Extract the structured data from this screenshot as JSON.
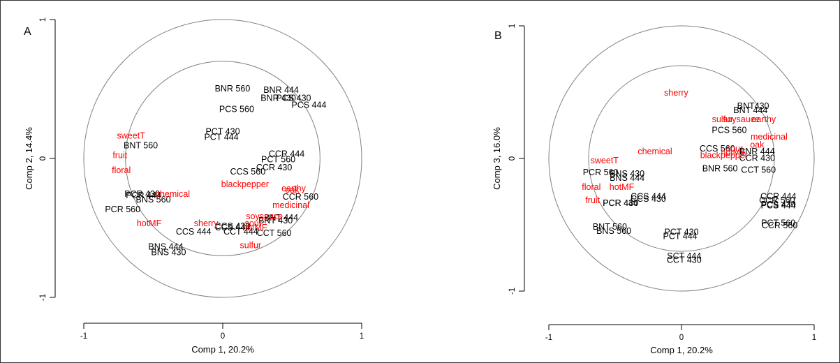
{
  "colors": {
    "variable": "#ff0000",
    "observation": "#000000",
    "circle": "#808080"
  },
  "chart_data": [
    {
      "type": "scatter",
      "panel": "A",
      "xlabel": "Comp 1, 20.2%",
      "ylabel": "Comp 2, 14.4%",
      "xlim": [
        -1,
        1
      ],
      "ylim": [
        -1,
        1
      ],
      "xticks": [
        "-1",
        "0",
        "1"
      ],
      "yticks": [
        "-1",
        "0",
        "1"
      ],
      "circles": [
        1.0,
        0.7
      ],
      "series": [
        {
          "kind": "observations",
          "points": [
            {
              "label": "BNR 560",
              "x": 0.07,
              "y": 0.5
            },
            {
              "label": "BNR 444",
              "x": 0.42,
              "y": 0.49
            },
            {
              "label": "BNR 430",
              "x": 0.4,
              "y": 0.43
            },
            {
              "label": "PCS 430",
              "x": 0.51,
              "y": 0.43
            },
            {
              "label": "PCS 444",
              "x": 0.62,
              "y": 0.38
            },
            {
              "label": "PCS 560",
              "x": 0.1,
              "y": 0.35
            },
            {
              "label": "PCT 430",
              "x": 0.0,
              "y": 0.19
            },
            {
              "label": "PCT 444",
              "x": -0.01,
              "y": 0.15
            },
            {
              "label": "BNT 560",
              "x": -0.59,
              "y": 0.09
            },
            {
              "label": "CCR 444",
              "x": 0.46,
              "y": 0.03
            },
            {
              "label": "PCT 560",
              "x": 0.4,
              "y": -0.01
            },
            {
              "label": "CCR 430",
              "x": 0.37,
              "y": -0.07
            },
            {
              "label": "CCS 560",
              "x": 0.18,
              "y": -0.1
            },
            {
              "label": "CCR 560",
              "x": 0.56,
              "y": -0.28
            },
            {
              "label": "PCR 430",
              "x": -0.58,
              "y": -0.26
            },
            {
              "label": "PCR 444",
              "x": -0.57,
              "y": -0.27
            },
            {
              "label": "BNS 560",
              "x": -0.5,
              "y": -0.3
            },
            {
              "label": "PCR 560",
              "x": -0.72,
              "y": -0.37
            },
            {
              "label": "CCS 430",
              "x": 0.07,
              "y": -0.49
            },
            {
              "label": "CCS 444",
              "x": 0.07,
              "y": -0.5
            },
            {
              "label": "CCS 444",
              "x": -0.21,
              "y": -0.53
            },
            {
              "label": "BNT 444",
              "x": 0.42,
              "y": -0.43
            },
            {
              "label": "BNT 430",
              "x": 0.38,
              "y": -0.45
            },
            {
              "label": "CCT 444",
              "x": 0.13,
              "y": -0.53
            },
            {
              "label": "CCT 560",
              "x": 0.37,
              "y": -0.54
            },
            {
              "label": "BNS 444",
              "x": -0.41,
              "y": -0.64
            },
            {
              "label": "BNS 430",
              "x": -0.39,
              "y": -0.68
            }
          ]
        },
        {
          "kind": "variables",
          "points": [
            {
              "label": "sweetT",
              "x": -0.66,
              "y": 0.16
            },
            {
              "label": "fruit",
              "x": -0.74,
              "y": 0.02
            },
            {
              "label": "floral",
              "x": -0.73,
              "y": -0.09
            },
            {
              "label": "chemical",
              "x": -0.36,
              "y": -0.26
            },
            {
              "label": "hotMF",
              "x": -0.53,
              "y": -0.47
            },
            {
              "label": "blackpepper",
              "x": 0.16,
              "y": -0.19
            },
            {
              "label": "earthy",
              "x": 0.51,
              "y": -0.22
            },
            {
              "label": "oak",
              "x": 0.5,
              "y": -0.23
            },
            {
              "label": "medicinal",
              "x": 0.49,
              "y": -0.34
            },
            {
              "label": "soysauce",
              "x": 0.3,
              "y": -0.42
            },
            {
              "label": "sour",
              "x": 0.22,
              "y": -0.47
            },
            {
              "label": "sherry",
              "x": -0.12,
              "y": -0.47
            },
            {
              "label": "hotMF",
              "x": 0.23,
              "y": -0.5
            },
            {
              "label": "sulfur",
              "x": 0.2,
              "y": -0.63
            }
          ]
        }
      ]
    },
    {
      "type": "scatter",
      "panel": "B",
      "xlabel": "Comp 1, 20.2%",
      "ylabel": "Comp 3, 16.0%",
      "xlim": [
        -1,
        1
      ],
      "ylim": [
        -1,
        1
      ],
      "xticks": [
        "-1",
        "0",
        "1"
      ],
      "yticks": [
        "-1",
        "0",
        "1"
      ],
      "circles": [
        1.0,
        0.7
      ],
      "series": [
        {
          "kind": "observations",
          "points": [
            {
              "label": "BNT430",
              "x": 0.54,
              "y": 0.39
            },
            {
              "label": "BNT 444",
              "x": 0.52,
              "y": 0.36
            },
            {
              "label": "PCS 560",
              "x": 0.36,
              "y": 0.21
            },
            {
              "label": "CCS 560",
              "x": 0.27,
              "y": 0.07
            },
            {
              "label": "BNR 444",
              "x": 0.57,
              "y": 0.05
            },
            {
              "label": "CCR 430",
              "x": 0.57,
              "y": 0.0
            },
            {
              "label": "BNR 560",
              "x": 0.29,
              "y": -0.08
            },
            {
              "label": "CCT 560",
              "x": 0.58,
              "y": -0.09
            },
            {
              "label": "PCR 560",
              "x": -0.61,
              "y": -0.11
            },
            {
              "label": "BNS 430",
              "x": -0.41,
              "y": -0.12
            },
            {
              "label": "BNS 444",
              "x": -0.41,
              "y": -0.15
            },
            {
              "label": "CCS 444",
              "x": -0.25,
              "y": -0.29
            },
            {
              "label": "CCS 430",
              "x": -0.25,
              "y": -0.31
            },
            {
              "label": "PCR 430",
              "x": -0.46,
              "y": -0.34
            },
            {
              "label": "PCR 444",
              "x": -0.46,
              "y": -0.34
            },
            {
              "label": "CCR 444",
              "x": 0.73,
              "y": -0.29
            },
            {
              "label": "CCR 560",
              "x": 0.72,
              "y": -0.32
            },
            {
              "label": "PCS 430",
              "x": 0.73,
              "y": -0.35
            },
            {
              "label": "PCS 444",
              "x": 0.73,
              "y": -0.36
            },
            {
              "label": "PCT 560",
              "x": 0.73,
              "y": -0.49
            },
            {
              "label": "CCR 560",
              "x": 0.74,
              "y": -0.51
            },
            {
              "label": "BNT 560",
              "x": -0.54,
              "y": -0.52
            },
            {
              "label": "BNS 560",
              "x": -0.51,
              "y": -0.55
            },
            {
              "label": "PCT 430",
              "x": 0.0,
              "y": -0.56
            },
            {
              "label": "PCT 444",
              "x": -0.01,
              "y": -0.59
            },
            {
              "label": "SCT 444",
              "x": 0.02,
              "y": -0.74
            },
            {
              "label": "CCT 430",
              "x": 0.02,
              "y": -0.77
            }
          ]
        },
        {
          "kind": "variables",
          "points": [
            {
              "label": "sherry",
              "x": -0.04,
              "y": 0.49
            },
            {
              "label": "sulfur",
              "x": 0.31,
              "y": 0.29
            },
            {
              "label": "soysauce",
              "x": 0.45,
              "y": 0.29
            },
            {
              "label": "earthy",
              "x": 0.62,
              "y": 0.29
            },
            {
              "label": "medicinal",
              "x": 0.66,
              "y": 0.16
            },
            {
              "label": "oak",
              "x": 0.57,
              "y": 0.1
            },
            {
              "label": "sour",
              "x": 0.4,
              "y": 0.07
            },
            {
              "label": "hotMF",
              "x": 0.39,
              "y": 0.04
            },
            {
              "label": "blackpepper",
              "x": 0.32,
              "y": 0.02
            },
            {
              "label": "sweetT",
              "x": -0.58,
              "y": -0.02
            },
            {
              "label": "chemical",
              "x": -0.2,
              "y": 0.05
            },
            {
              "label": "floral",
              "x": -0.68,
              "y": -0.22
            },
            {
              "label": "hotMF",
              "x": -0.45,
              "y": -0.22
            },
            {
              "label": "fruit",
              "x": -0.67,
              "y": -0.32
            }
          ]
        }
      ]
    }
  ]
}
